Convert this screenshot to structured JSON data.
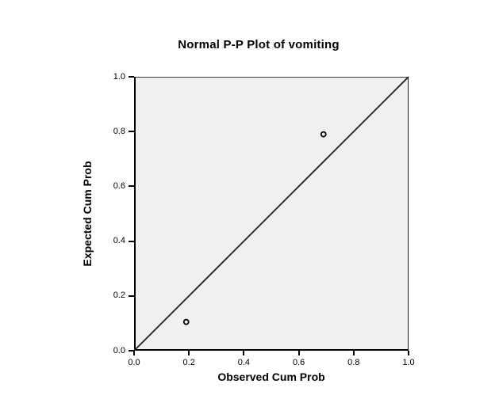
{
  "chart_data": {
    "type": "scatter",
    "title": "Normal P-P Plot of vomiting",
    "xlabel": "Observed Cum Prob",
    "ylabel": "Expected Cum Prob",
    "xlim": [
      0.0,
      1.0
    ],
    "ylim": [
      0.0,
      1.0
    ],
    "x_tick_labels": [
      "0.0",
      "0.2",
      "0.4",
      "0.6",
      "0.8",
      "1.0"
    ],
    "y_tick_labels": [
      "0.0",
      "0.2",
      "0.4",
      "0.6",
      "0.8",
      "1.0"
    ],
    "points": [
      {
        "x": 0.19,
        "y": 0.105
      },
      {
        "x": 0.69,
        "y": 0.79
      }
    ],
    "reference_line": {
      "x1": 0.0,
      "y1": 0.0,
      "x2": 1.0,
      "y2": 1.0
    },
    "marker": {
      "shape": "open-circle",
      "stroke": "#000000",
      "fill": "none",
      "radius_px": 3,
      "stroke_width_px": 1.8
    },
    "grid": false,
    "legend": null,
    "colors": {
      "canvas_bg": "#ffffff",
      "plot_bg": "#f0f0f0",
      "axis": "#000000",
      "reference_line": "#1a1a1a",
      "text": "#000000"
    }
  }
}
